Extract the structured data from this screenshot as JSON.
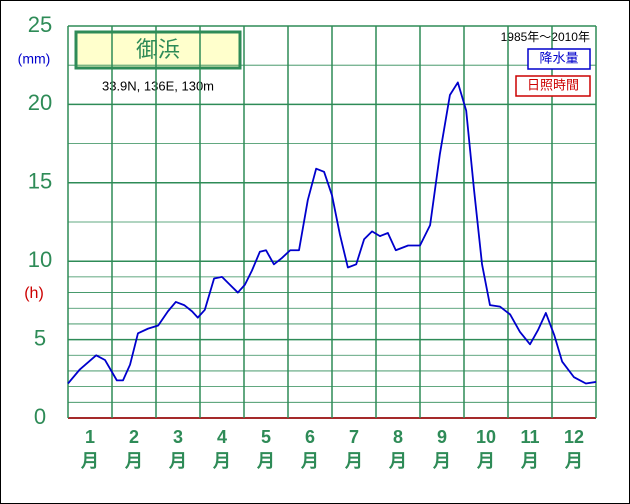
{
  "chart_data": {
    "type": "line",
    "title": "御浜",
    "location": "33.9N, 136E, 130m",
    "period": "1985年〜2010年",
    "y_unit_label": "(mm)",
    "y2_unit_label": "(h)",
    "categories": [
      "1",
      "2",
      "3",
      "4",
      "5",
      "6",
      "7",
      "8",
      "9",
      "10",
      "11",
      "12"
    ],
    "category_suffix": "月",
    "legend": [
      {
        "name": "降水量",
        "color": "#0000cc"
      },
      {
        "name": "日照時間",
        "color": "#cc0000"
      }
    ],
    "series": [
      {
        "color": "#0000cc",
        "x": [
          0,
          0.27,
          0.64,
          0.84,
          1.11,
          1.25,
          1.41,
          1.59,
          1.82,
          2.05,
          2.27,
          2.45,
          2.64,
          2.82,
          2.95,
          3.11,
          3.32,
          3.5,
          3.68,
          3.86,
          4.02,
          4.18,
          4.36,
          4.5,
          4.68,
          4.86,
          5.05,
          5.25,
          5.45,
          5.64,
          5.82,
          6,
          6.18,
          6.36,
          6.55,
          6.73,
          6.91,
          7.09,
          7.27,
          7.45,
          7.73,
          8,
          8.23,
          8.45,
          8.68,
          8.86,
          9.05,
          9.23,
          9.41,
          9.59,
          9.82,
          10.05,
          10.27,
          10.5,
          10.68,
          10.86,
          11.05,
          11.23,
          11.5,
          11.77,
          12
        ],
        "values": [
          2.2,
          3.1,
          4.0,
          3.7,
          2.4,
          2.4,
          3.4,
          5.4,
          5.7,
          5.9,
          6.8,
          7.4,
          7.2,
          6.8,
          6.4,
          6.9,
          8.9,
          9.0,
          8.5,
          8.0,
          8.5,
          9.4,
          10.6,
          10.7,
          9.8,
          10.2,
          10.7,
          10.7,
          13.9,
          15.9,
          15.7,
          14.2,
          11.7,
          9.6,
          9.8,
          11.4,
          11.9,
          11.6,
          11.8,
          10.7,
          11.0,
          11.0,
          12.3,
          16.8,
          20.6,
          21.4,
          19.6,
          14.5,
          9.8,
          7.2,
          7.1,
          6.6,
          5.5,
          4.7,
          5.6,
          6.7,
          5.3,
          3.6,
          2.6,
          2.2,
          2.3
        ]
      }
    ],
    "xlim": [
      0,
      12
    ],
    "ylim": [
      0,
      25
    ],
    "yticks": [
      0,
      5,
      10,
      15,
      20,
      25
    ],
    "yminor": [
      1,
      2,
      3,
      4,
      6,
      7,
      8,
      9,
      12.5,
      17.5,
      22.5
    ],
    "grid": true
  }
}
